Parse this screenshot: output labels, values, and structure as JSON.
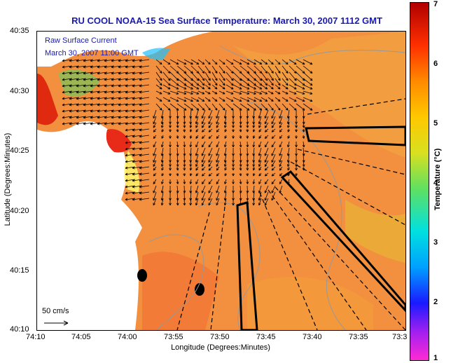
{
  "title": "RU COOL  NOAA-15  Sea Surface Temperature:  March 30, 2007 1112 GMT",
  "annotation_line1": "Raw Surface Current",
  "annotation_line2": "March 30, 2007 11:00 GMT",
  "scale_label": "50 cm/s",
  "xlabel": "Longitude (Degrees:Minutes)",
  "ylabel": "Latitude (Degrees:Minutes)",
  "colorbar_label": "Temperature (°C)",
  "lat_ticks": [
    "40:35",
    "40:30",
    "40:25",
    "40:20",
    "40:15",
    "40:10"
  ],
  "lon_ticks": [
    "74:10",
    "74:05",
    "74:00",
    "73:55",
    "73:50",
    "73:45",
    "73:40",
    "73:35",
    "73:3"
  ],
  "colorbar_ticks": [
    "7",
    "6",
    "5",
    "4",
    "3",
    "2",
    "1"
  ],
  "colors": {
    "title": "#1a1ab0",
    "land": "#ffffff",
    "ocean_warm": "#f08a3a"
  }
}
